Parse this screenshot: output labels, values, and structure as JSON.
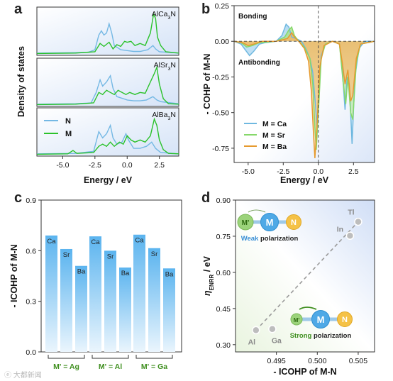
{
  "panels": {
    "a": "a",
    "b": "b",
    "c": "c",
    "d": "d"
  },
  "watermark": "ⓔ 大都新闻",
  "chart_data": [
    {
      "id": "a",
      "type": "line",
      "ylabel": "Density of states",
      "xlabel": "Energy / eV",
      "xlim": [
        -7,
        4
      ],
      "xticks": [
        "-5.0",
        "-2.5",
        "0.0",
        "2.5"
      ],
      "xtick_values": [
        -5,
        -2.5,
        0,
        2.5
      ],
      "legend": [
        {
          "name": "N",
          "color": "#74b8e4"
        },
        {
          "name": "M",
          "color": "#2bc22b"
        }
      ],
      "subplots": [
        {
          "label_prefix": "AlCa",
          "label_sub": "3",
          "label_suffix": "N",
          "N": [
            [
              -7,
              0.02
            ],
            [
              -4,
              0.03
            ],
            [
              -3,
              0.04
            ],
            [
              -2.5,
              0.1
            ],
            [
              -2.2,
              0.45
            ],
            [
              -2,
              0.55
            ],
            [
              -1.8,
              0.45
            ],
            [
              -1.6,
              0.5
            ],
            [
              -1.4,
              0.72
            ],
            [
              -1.2,
              0.5
            ],
            [
              -1,
              0.2
            ],
            [
              -0.5,
              0.1
            ],
            [
              0,
              0.08
            ],
            [
              0.5,
              0.06
            ],
            [
              1,
              0.06
            ],
            [
              1.6,
              0.1
            ],
            [
              2,
              0.2
            ],
            [
              2.2,
              0.12
            ],
            [
              2.5,
              0.05
            ],
            [
              4,
              0.02
            ]
          ],
          "M": [
            [
              -7,
              0.01
            ],
            [
              -4,
              0.02
            ],
            [
              -2.5,
              0.05
            ],
            [
              -2.1,
              0.25
            ],
            [
              -1.8,
              0.18
            ],
            [
              -1.4,
              0.28
            ],
            [
              -1.1,
              0.12
            ],
            [
              -0.8,
              0.22
            ],
            [
              -0.5,
              0.18
            ],
            [
              -0.2,
              0.3
            ],
            [
              0,
              0.28
            ],
            [
              0.3,
              0.3
            ],
            [
              0.6,
              0.2
            ],
            [
              1,
              0.25
            ],
            [
              1.4,
              0.2
            ],
            [
              1.8,
              0.5
            ],
            [
              2.05,
              0.95
            ],
            [
              2.2,
              0.85
            ],
            [
              2.35,
              0.4
            ],
            [
              2.6,
              0.2
            ],
            [
              3,
              0.05
            ],
            [
              4,
              0.02
            ]
          ]
        },
        {
          "label_prefix": "AlSr",
          "label_sub": "3",
          "label_suffix": "N",
          "N": [
            [
              -7,
              0.02
            ],
            [
              -4,
              0.03
            ],
            [
              -2.8,
              0.05
            ],
            [
              -2.4,
              0.3
            ],
            [
              -2.1,
              0.6
            ],
            [
              -1.9,
              0.45
            ],
            [
              -1.6,
              0.55
            ],
            [
              -1.3,
              0.7
            ],
            [
              -1.1,
              0.4
            ],
            [
              -0.8,
              0.2
            ],
            [
              -0.3,
              0.15
            ],
            [
              0,
              0.12
            ],
            [
              0.5,
              0.1
            ],
            [
              1,
              0.1
            ],
            [
              1.5,
              0.12
            ],
            [
              2,
              0.2
            ],
            [
              2.3,
              0.12
            ],
            [
              2.6,
              0.08
            ],
            [
              4,
              0.03
            ]
          ],
          "M": [
            [
              -7,
              0.01
            ],
            [
              -4,
              0.02
            ],
            [
              -2.6,
              0.05
            ],
            [
              -2.2,
              0.3
            ],
            [
              -1.9,
              0.25
            ],
            [
              -1.6,
              0.35
            ],
            [
              -1.3,
              0.3
            ],
            [
              -1,
              0.25
            ],
            [
              -0.7,
              0.35
            ],
            [
              -0.4,
              0.3
            ],
            [
              -0.1,
              0.25
            ],
            [
              0.2,
              0.3
            ],
            [
              0.6,
              0.25
            ],
            [
              1,
              0.3
            ],
            [
              1.4,
              0.28
            ],
            [
              1.8,
              0.55
            ],
            [
              2.1,
              0.75
            ],
            [
              2.3,
              0.9
            ],
            [
              2.5,
              0.5
            ],
            [
              2.8,
              0.15
            ],
            [
              3.2,
              0.03
            ],
            [
              4,
              0.02
            ]
          ]
        },
        {
          "label_prefix": "AlBa",
          "label_sub": "3",
          "label_suffix": "N",
          "N": [
            [
              -7,
              0.02
            ],
            [
              -4,
              0.03
            ],
            [
              -2.6,
              0.08
            ],
            [
              -2.2,
              0.55
            ],
            [
              -1.9,
              0.4
            ],
            [
              -1.6,
              0.5
            ],
            [
              -1.3,
              0.7
            ],
            [
              -1.1,
              0.4
            ],
            [
              -0.8,
              0.25
            ],
            [
              -0.4,
              0.3
            ],
            [
              -0.1,
              0.5
            ],
            [
              0.1,
              0.35
            ],
            [
              0.5,
              0.15
            ],
            [
              1,
              0.15
            ],
            [
              1.5,
              0.2
            ],
            [
              1.9,
              0.3
            ],
            [
              2.2,
              0.15
            ],
            [
              2.6,
              0.05
            ],
            [
              4,
              0.02
            ]
          ],
          "M": [
            [
              -7,
              0.01
            ],
            [
              -4.6,
              0.02
            ],
            [
              -4.2,
              0.1
            ],
            [
              -3.9,
              0.03
            ],
            [
              -2.6,
              0.05
            ],
            [
              -2.2,
              0.2
            ],
            [
              -1.9,
              0.25
            ],
            [
              -1.6,
              0.2
            ],
            [
              -1.3,
              0.3
            ],
            [
              -1,
              0.2
            ],
            [
              -0.6,
              0.3
            ],
            [
              -0.3,
              0.25
            ],
            [
              0,
              0.45
            ],
            [
              0.3,
              0.35
            ],
            [
              0.6,
              0.3
            ],
            [
              1,
              0.35
            ],
            [
              1.4,
              0.3
            ],
            [
              1.8,
              0.45
            ],
            [
              2.1,
              0.85
            ],
            [
              2.3,
              0.7
            ],
            [
              2.5,
              0.35
            ],
            [
              2.8,
              0.12
            ],
            [
              3.2,
              0.03
            ],
            [
              4,
              0.02
            ]
          ]
        }
      ]
    },
    {
      "id": "b",
      "type": "area",
      "ylabel": "- COHP of M-N",
      "xlabel": "Energy / eV",
      "xlim": [
        -6,
        4
      ],
      "ylim": [
        -0.85,
        0.25
      ],
      "yticks": [
        "0.25",
        "0.00",
        "-0.25",
        "-0.50",
        "-0.75"
      ],
      "ytick_values": [
        0.25,
        0,
        -0.25,
        -0.5,
        -0.75
      ],
      "xticks": [
        "-5.0",
        "-2.5",
        "0.0",
        "2.5"
      ],
      "xtick_values": [
        -5,
        -2.5,
        0,
        2.5
      ],
      "annotations": [
        "Bonding",
        "Antibonding"
      ],
      "series": [
        {
          "name": "M = Ca",
          "color": "#6fb8e0",
          "points": [
            [
              -6,
              0
            ],
            [
              -5.5,
              -0.02
            ],
            [
              -5.2,
              -0.06
            ],
            [
              -4.9,
              -0.1
            ],
            [
              -4.6,
              -0.07
            ],
            [
              -4.2,
              -0.02
            ],
            [
              -3.8,
              -0.01
            ],
            [
              -3,
              0
            ],
            [
              -2.6,
              0.04
            ],
            [
              -2.3,
              0.12
            ],
            [
              -2.1,
              0.1
            ],
            [
              -1.9,
              0.03
            ],
            [
              -1.6,
              0.02
            ],
            [
              -1.2,
              0
            ],
            [
              -0.9,
              -0.05
            ],
            [
              -0.6,
              -0.12
            ],
            [
              -0.4,
              -0.22
            ],
            [
              -0.2,
              -0.45
            ],
            [
              -0.1,
              -0.6
            ],
            [
              0,
              -0.4
            ],
            [
              0.2,
              -0.1
            ],
            [
              0.5,
              -0.02
            ],
            [
              1,
              0
            ],
            [
              1.5,
              -0.02
            ],
            [
              1.7,
              -0.2
            ],
            [
              1.9,
              -0.48
            ],
            [
              2.05,
              -0.25
            ],
            [
              2.2,
              -0.3
            ],
            [
              2.4,
              -0.72
            ],
            [
              2.6,
              -0.25
            ],
            [
              2.9,
              -0.05
            ],
            [
              3.3,
              0
            ],
            [
              4,
              0
            ]
          ]
        },
        {
          "name": "M = Sr",
          "color": "#86d86a",
          "points": [
            [
              -6,
              0
            ],
            [
              -5.5,
              -0.01
            ],
            [
              -5.1,
              -0.04
            ],
            [
              -4.7,
              -0.03
            ],
            [
              -4.2,
              -0.01
            ],
            [
              -3,
              0
            ],
            [
              -2.4,
              0.03
            ],
            [
              -2.1,
              0.08
            ],
            [
              -1.9,
              0.1
            ],
            [
              -1.7,
              0.04
            ],
            [
              -1.4,
              0
            ],
            [
              -1,
              -0.04
            ],
            [
              -0.6,
              -0.12
            ],
            [
              -0.4,
              -0.3
            ],
            [
              -0.25,
              -0.6
            ],
            [
              -0.15,
              -0.76
            ],
            [
              0,
              -0.5
            ],
            [
              0.2,
              -0.12
            ],
            [
              0.5,
              -0.02
            ],
            [
              1,
              0
            ],
            [
              1.5,
              -0.02
            ],
            [
              1.75,
              -0.28
            ],
            [
              1.95,
              -0.44
            ],
            [
              2.1,
              -0.25
            ],
            [
              2.3,
              -0.5
            ],
            [
              2.45,
              -0.55
            ],
            [
              2.7,
              -0.15
            ],
            [
              3,
              -0.02
            ],
            [
              4,
              0
            ]
          ]
        },
        {
          "name": "M = Ba",
          "color": "#e69a2e",
          "points": [
            [
              -6,
              0
            ],
            [
              -5.4,
              -0.01
            ],
            [
              -5,
              -0.03
            ],
            [
              -4.6,
              -0.02
            ],
            [
              -4,
              0
            ],
            [
              -3,
              0
            ],
            [
              -2.2,
              0.02
            ],
            [
              -1.9,
              0.06
            ],
            [
              -1.7,
              0.03
            ],
            [
              -1.4,
              0
            ],
            [
              -1,
              -0.05
            ],
            [
              -0.7,
              -0.14
            ],
            [
              -0.5,
              -0.35
            ],
            [
              -0.35,
              -0.65
            ],
            [
              -0.25,
              -0.82
            ],
            [
              -0.1,
              -0.6
            ],
            [
              0.1,
              -0.18
            ],
            [
              0.4,
              -0.03
            ],
            [
              1,
              0
            ],
            [
              1.5,
              -0.02
            ],
            [
              1.7,
              -0.15
            ],
            [
              1.9,
              -0.3
            ],
            [
              2.1,
              -0.2
            ],
            [
              2.3,
              -0.42
            ],
            [
              2.45,
              -0.38
            ],
            [
              2.7,
              -0.12
            ],
            [
              3,
              -0.02
            ],
            [
              4,
              0
            ]
          ]
        }
      ]
    },
    {
      "id": "c",
      "type": "bar",
      "ylabel": "- ICOHP of M-N",
      "ylim": [
        0,
        0.9
      ],
      "yticks": [
        "0.0",
        "0.3",
        "0.6",
        "0.9"
      ],
      "ytick_values": [
        0,
        0.3,
        0.6,
        0.9
      ],
      "groups": [
        "M' = Ag",
        "M' = Al",
        "M' = Ga"
      ],
      "categories": [
        "Ca",
        "Sr",
        "Ba"
      ],
      "values": [
        [
          0.69,
          0.61,
          0.51
        ],
        [
          0.685,
          0.6,
          0.5
        ],
        [
          0.695,
          0.615,
          0.495
        ]
      ]
    },
    {
      "id": "d",
      "type": "scatter",
      "xlabel": "- ICOHP of M-N",
      "ylabel_main": "η",
      "ylabel_sub": "ENRR",
      "ylabel_unit": " / eV",
      "xlim": [
        0.49,
        0.507
      ],
      "ylim": [
        0.27,
        0.9
      ],
      "xticks": [
        "0.495",
        "0.500",
        "0.505"
      ],
      "xtick_values": [
        0.495,
        0.5,
        0.505
      ],
      "yticks": [
        "0.30",
        "0.45",
        "0.60",
        "0.75",
        "0.90"
      ],
      "ytick_values": [
        0.3,
        0.45,
        0.6,
        0.75,
        0.9
      ],
      "points": [
        {
          "label": "Al",
          "x": 0.4925,
          "y": 0.36
        },
        {
          "label": "Ga",
          "x": 0.4945,
          "y": 0.365
        },
        {
          "label": "In",
          "x": 0.504,
          "y": 0.752
        },
        {
          "label": "Tl",
          "x": 0.505,
          "y": 0.81
        }
      ],
      "insets": [
        {
          "labels": [
            "M'",
            "M",
            "N"
          ],
          "caption_highlight": "Weak",
          "caption_rest": " polarization"
        },
        {
          "labels": [
            "M'",
            "M",
            "N"
          ],
          "caption_highlight": "Strong",
          "caption_rest": " polarization"
        }
      ]
    }
  ]
}
